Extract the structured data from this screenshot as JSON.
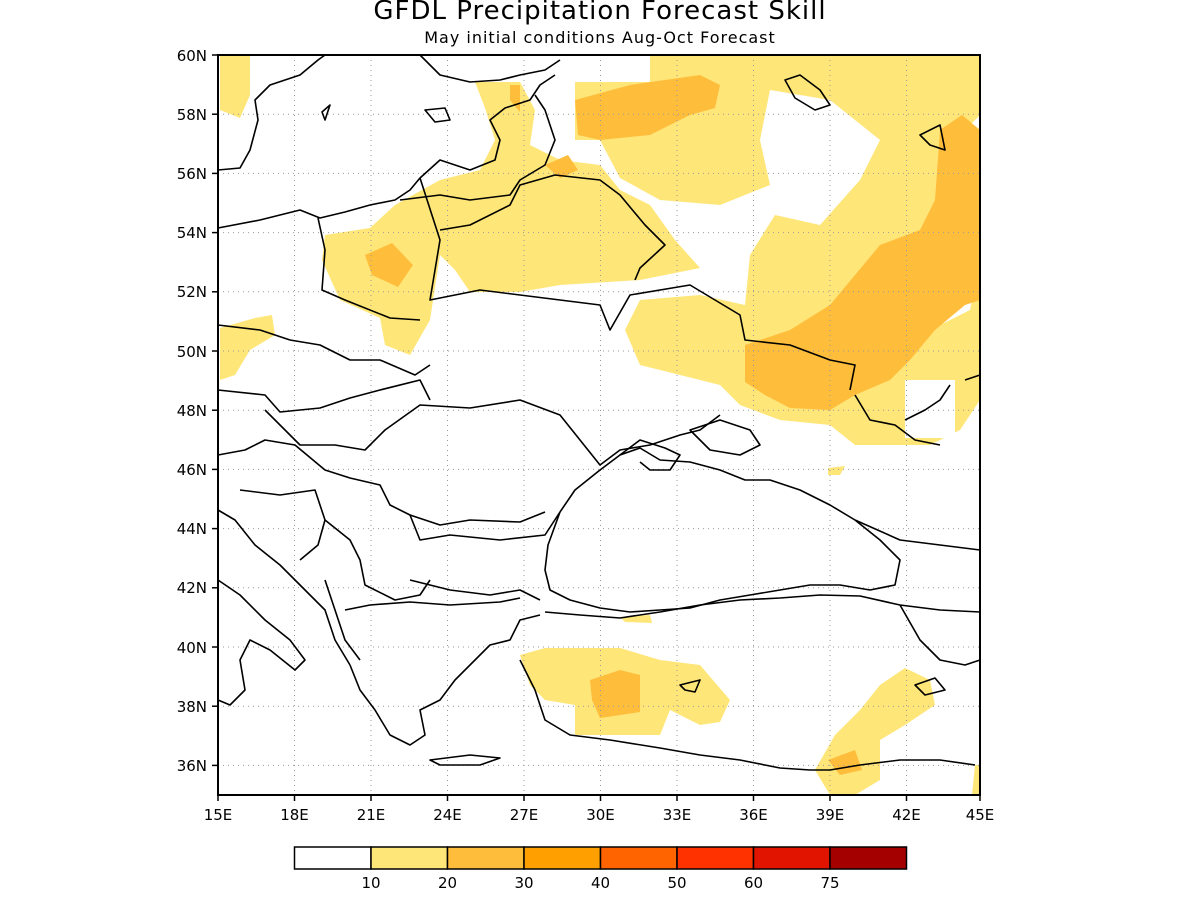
{
  "title": "GFDL Precipitation Forecast Skill",
  "subtitle": "May initial conditions  Aug-Oct Forecast",
  "map": {
    "lon_range": [
      15,
      45
    ],
    "lat_range": [
      35,
      60
    ],
    "lon_ticks": [
      "15E",
      "18E",
      "21E",
      "24E",
      "27E",
      "30E",
      "33E",
      "36E",
      "39E",
      "42E",
      "45E"
    ],
    "lat_ticks": [
      "36N",
      "38N",
      "40N",
      "42N",
      "44N",
      "46N",
      "48N",
      "50N",
      "52N",
      "54N",
      "56N",
      "58N",
      "60N"
    ],
    "grid": "dotted"
  },
  "legend": {
    "labels": [
      "10",
      "20",
      "30",
      "40",
      "50",
      "60",
      "75"
    ],
    "colors": [
      "#ffffff",
      "#ffe678",
      "#ffbd3c",
      "#ffa000",
      "#ff6400",
      "#ff3200",
      "#e11400",
      "#a50000"
    ]
  }
}
